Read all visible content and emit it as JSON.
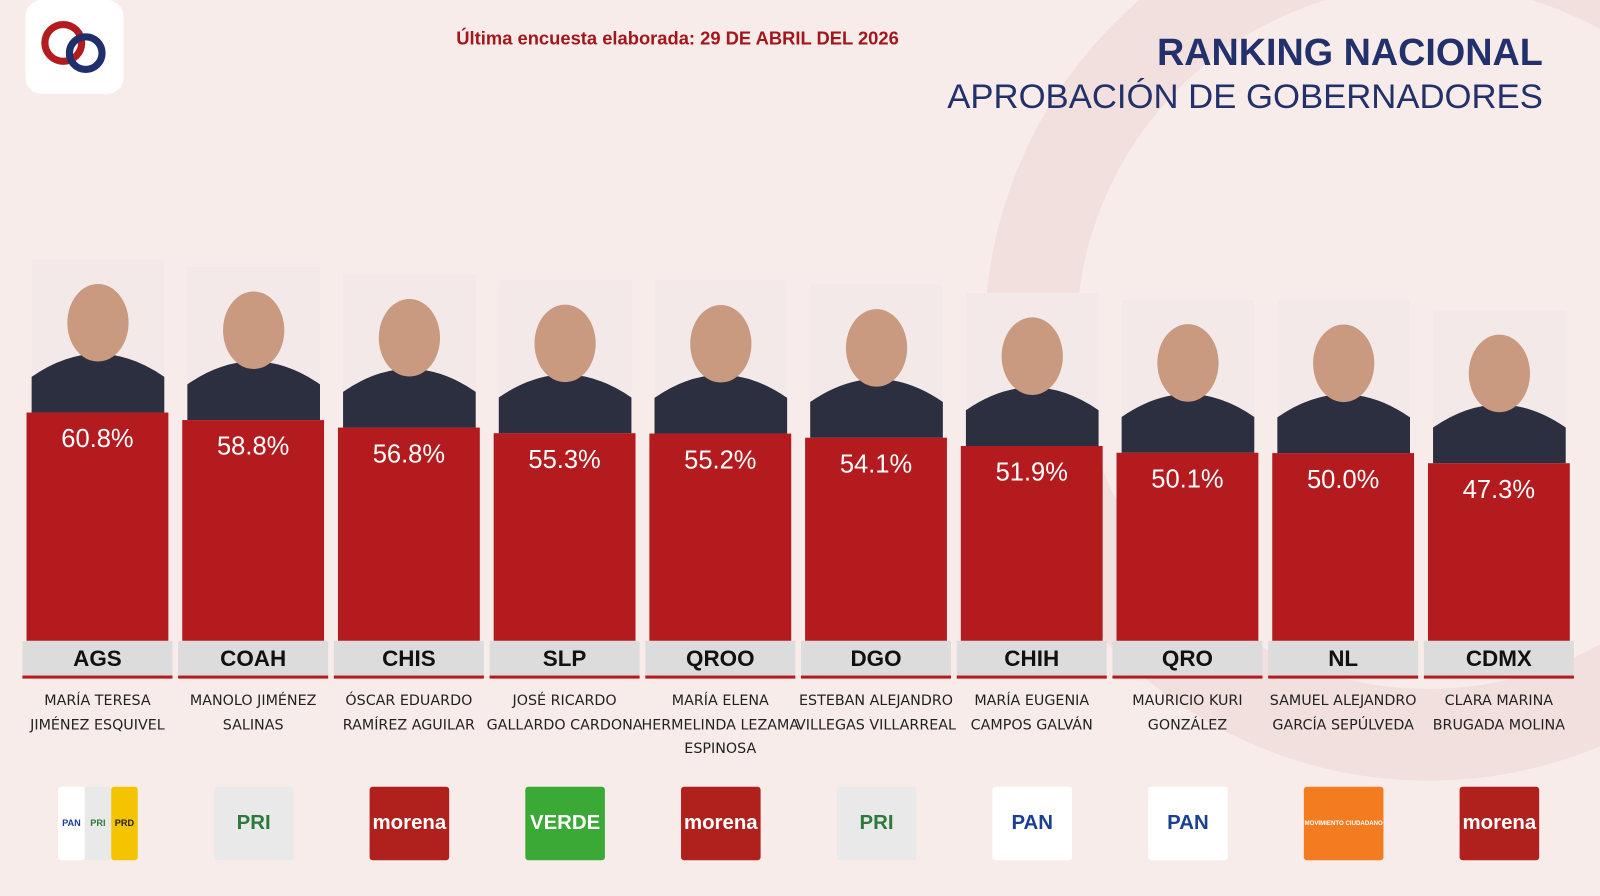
{
  "chart_data": {
    "type": "bar",
    "title": "RANKING NACIONAL",
    "subtitle": "APROBACIÓN DE GOBERNADORES",
    "note": "Última encuesta elaborada: 29 DE ABRIL DEL 2026",
    "categories": [
      "AGS",
      "COAH",
      "CHIS",
      "SLP",
      "QROO",
      "DGO",
      "CHIH",
      "QRO",
      "NL",
      "CDMX"
    ],
    "values": [
      60.8,
      58.8,
      56.8,
      55.3,
      55.2,
      54.1,
      51.9,
      50.1,
      50.0,
      47.3
    ],
    "value_labels": [
      "60.8%",
      "58.8%",
      "56.8%",
      "55.3%",
      "55.2%",
      "54.1%",
      "51.9%",
      "50.1%",
      "50.0%",
      "47.3%"
    ],
    "color": "#b31b1e",
    "governors": [
      "MARÍA TERESA JIMÉNEZ ESQUIVEL",
      "MANOLO JIMÉNEZ SALINAS",
      "ÓSCAR EDUARDO RAMÍREZ AGUILAR",
      "JOSÉ RICARDO GALLARDO CARDONA",
      "MARÍA ELENA HERMELINDA LEZAMA ESPINOSA",
      "ESTEBAN ALEJANDRO VILLEGAS VILLARREAL",
      "MARÍA EUGENIA CAMPOS GALVÁN",
      "MAURICIO KURI GONZÁLEZ",
      "SAMUEL ALEJANDRO GARCÍA SEPÚLVEDA",
      "CLARA MARINA BRUGADA MOLINA"
    ],
    "parties": [
      [
        "PAN",
        "PRI",
        "PRD"
      ],
      [
        "PRI"
      ],
      [
        "morena"
      ],
      [
        "VERDE"
      ],
      [
        "morena"
      ],
      [
        "PRI"
      ],
      [
        "PAN"
      ],
      [
        "PAN"
      ],
      [
        "MOVIMIENTO CIUDADANO"
      ],
      [
        "morena"
      ]
    ]
  }
}
